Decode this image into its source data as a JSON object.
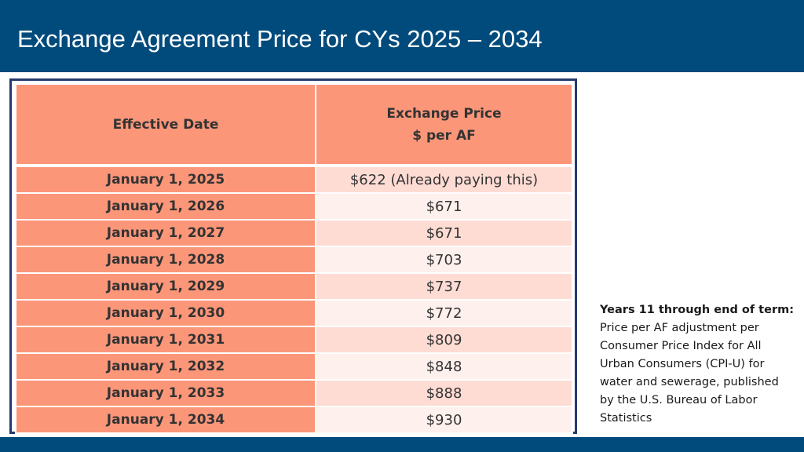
{
  "slide": {
    "title": "Exchange Agreement Price for CYs 2025 – 2034"
  },
  "table": {
    "header_date": "Effective Date",
    "header_price_line1": "Exchange Price",
    "header_price_line2": "$ per AF",
    "rows": [
      {
        "date": "January 1, 2025",
        "price": "$622 (Already paying this)"
      },
      {
        "date": "January 1, 2026",
        "price": "$671"
      },
      {
        "date": "January 1, 2027",
        "price": "$671"
      },
      {
        "date": "January 1, 2028",
        "price": "$703"
      },
      {
        "date": "January 1, 2029",
        "price": "$737"
      },
      {
        "date": "January 1, 2030",
        "price": "$772"
      },
      {
        "date": "January 1, 2031",
        "price": "$809"
      },
      {
        "date": "January 1, 2032",
        "price": "$848"
      },
      {
        "date": "January 1, 2033",
        "price": "$888"
      },
      {
        "date": "January 1, 2034",
        "price": "$930"
      }
    ]
  },
  "note": {
    "heading": "Years 11 through end of term:",
    "body": "Price per AF adjustment per Consumer Price Index for All Urban Consumers (CPI-U) for water and sewerage, published by the U.S. Bureau of Labor Statistics"
  },
  "colors": {
    "title_bar": "#004b7c",
    "header_fill": "#fb9679",
    "row_fill_light": "#fef0ec",
    "row_fill_mid": "#fedcd4",
    "frame_border": "#243a6e"
  }
}
